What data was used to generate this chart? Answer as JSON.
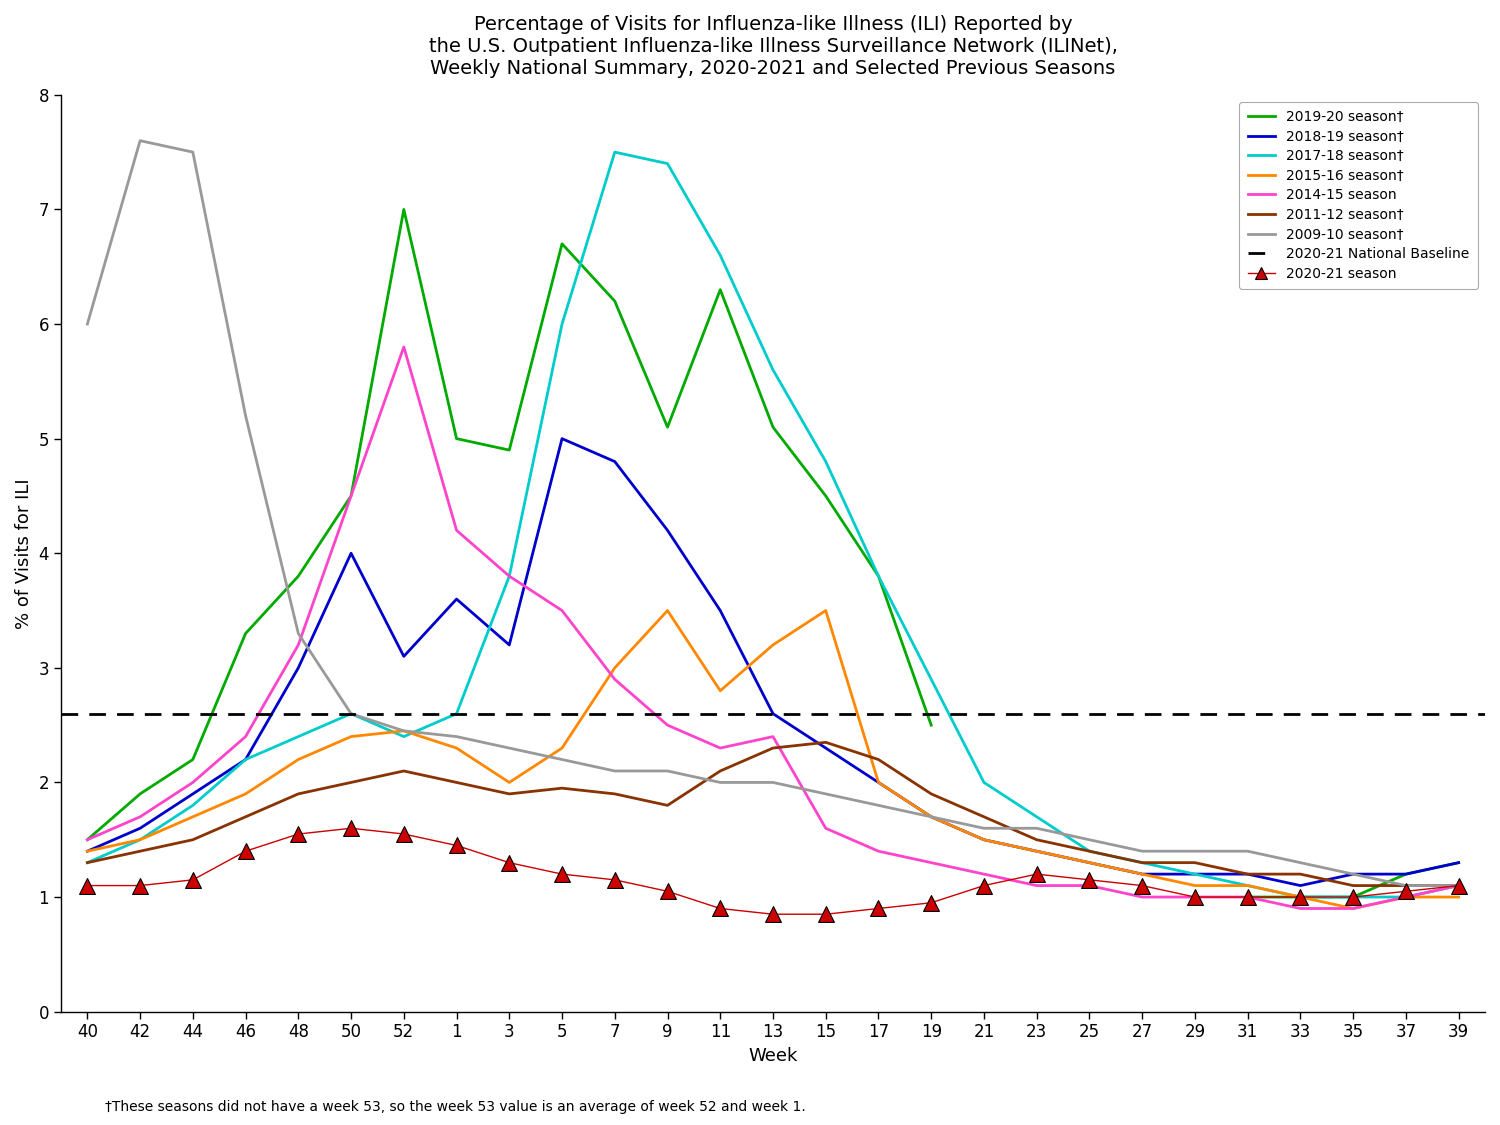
{
  "title": "Percentage of Visits for Influenza-like Illness (ILI) Reported by\nthe U.S. Outpatient Influenza-like Illness Surveillance Network (ILINet),\nWeekly National Summary, 2020-2021 and Selected Previous Seasons",
  "xlabel": "Week",
  "ylabel": "% of Visits for ILI",
  "footnote": "†These seasons did not have a week 53, so the week 53 value is an average of week 52 and week 1.",
  "baseline": 2.6,
  "ylim": [
    0,
    8
  ],
  "week_labels": [
    "40",
    "42",
    "44",
    "46",
    "48",
    "50",
    "52",
    "1",
    "3",
    "5",
    "7",
    "9",
    "11",
    "13",
    "15",
    "17",
    "19",
    "21",
    "23",
    "25",
    "27",
    "29",
    "31",
    "33",
    "35",
    "37",
    "39"
  ],
  "seasons": {
    "2019-20 season†": {
      "color": "#00aa00",
      "data": [
        1.5,
        1.9,
        2.2,
        3.3,
        3.8,
        4.5,
        7.0,
        5.0,
        4.9,
        6.7,
        6.2,
        5.1,
        6.3,
        5.1,
        4.5,
        3.8,
        2.5,
        null,
        null,
        null,
        null,
        null,
        1.0,
        1.0,
        1.0,
        1.2,
        1.3
      ]
    },
    "2018-19 season†": {
      "color": "#0000cc",
      "data": [
        1.4,
        1.6,
        1.9,
        2.2,
        3.0,
        4.0,
        3.1,
        3.6,
        3.2,
        5.0,
        4.8,
        4.2,
        3.5,
        2.6,
        2.3,
        2.0,
        1.7,
        1.5,
        1.4,
        1.3,
        1.2,
        1.2,
        1.2,
        1.1,
        1.2,
        1.2,
        1.3
      ]
    },
    "2017-18 season†": {
      "color": "#00cccc",
      "data": [
        1.3,
        1.5,
        1.8,
        2.2,
        2.4,
        2.6,
        2.4,
        2.6,
        3.8,
        6.0,
        7.5,
        7.4,
        6.6,
        5.6,
        4.8,
        3.8,
        2.9,
        2.0,
        1.7,
        1.4,
        1.3,
        1.2,
        1.1,
        1.0,
        1.0,
        1.0,
        1.1
      ]
    },
    "2015-16 season†": {
      "color": "#ff8800",
      "data": [
        1.4,
        1.5,
        1.7,
        1.9,
        2.2,
        2.4,
        2.45,
        2.3,
        2.0,
        2.3,
        3.0,
        3.5,
        2.8,
        3.2,
        3.5,
        2.0,
        1.7,
        1.5,
        1.4,
        1.3,
        1.2,
        1.1,
        1.1,
        1.0,
        0.9,
        1.0,
        1.0
      ]
    },
    "2014-15 season": {
      "color": "#ff44cc",
      "data": [
        1.5,
        1.7,
        2.0,
        2.4,
        3.2,
        4.5,
        5.8,
        4.2,
        3.8,
        3.5,
        2.9,
        2.5,
        2.3,
        2.4,
        1.6,
        1.4,
        1.3,
        1.2,
        1.1,
        1.1,
        1.0,
        1.0,
        1.0,
        0.9,
        0.9,
        1.0,
        1.1
      ]
    },
    "2011-12 season†": {
      "color": "#883300",
      "data": [
        1.3,
        1.4,
        1.5,
        1.7,
        1.9,
        2.0,
        2.1,
        2.0,
        1.9,
        1.95,
        1.9,
        1.8,
        2.1,
        2.3,
        2.35,
        2.2,
        1.9,
        1.7,
        1.5,
        1.4,
        1.3,
        1.3,
        1.2,
        1.2,
        1.1,
        1.1,
        1.1
      ]
    },
    "2009-10 season†": {
      "color": "#999999",
      "data": [
        6.0,
        7.6,
        7.5,
        5.2,
        3.3,
        2.6,
        2.45,
        2.4,
        2.3,
        2.2,
        2.1,
        2.1,
        2.0,
        2.0,
        1.9,
        1.8,
        1.7,
        1.6,
        1.6,
        1.5,
        1.4,
        1.4,
        1.4,
        1.3,
        1.2,
        1.1,
        1.1
      ]
    },
    "2020-21 National Baseline": {
      "color": "#000000",
      "dashed": true,
      "value": 2.6
    },
    "2020-21 season": {
      "color": "#cc0000",
      "marker_color": "#cc0000",
      "data": [
        1.1,
        1.1,
        1.15,
        1.4,
        1.55,
        1.6,
        1.55,
        1.45,
        1.3,
        1.2,
        1.15,
        1.05,
        0.9,
        0.85,
        0.85,
        0.9,
        0.95,
        1.1,
        1.2,
        1.15,
        1.1,
        1.0,
        1.0,
        1.0,
        1.0,
        1.05,
        1.1
      ]
    }
  }
}
